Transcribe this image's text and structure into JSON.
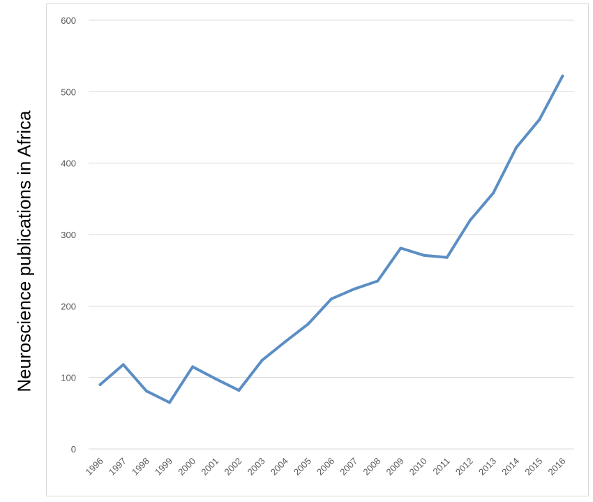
{
  "chart_data": {
    "type": "line",
    "ylabel": "Neuroscience  publications in Africa",
    "xlabel": "",
    "title": "",
    "categories": [
      "1996",
      "1997",
      "1998",
      "1999",
      "2000",
      "2001",
      "2002",
      "2003",
      "2004",
      "2005",
      "2006",
      "2007",
      "2008",
      "2009",
      "2010",
      "2011",
      "2012",
      "2013",
      "2014",
      "2015",
      "2016"
    ],
    "series": [
      {
        "values": [
          90,
          118,
          81,
          65,
          115,
          98,
          82,
          124,
          150,
          175,
          210,
          224,
          235,
          281,
          271,
          268,
          320,
          358,
          422,
          461,
          522
        ]
      }
    ],
    "ylim": [
      0,
      600
    ],
    "yticks": [
      "0",
      "100",
      "200",
      "300",
      "400",
      "500",
      "600"
    ],
    "grid": true,
    "colors": {
      "line": "#5b8ec4",
      "grid": "#d9d9d9",
      "tick": "#595959"
    }
  }
}
